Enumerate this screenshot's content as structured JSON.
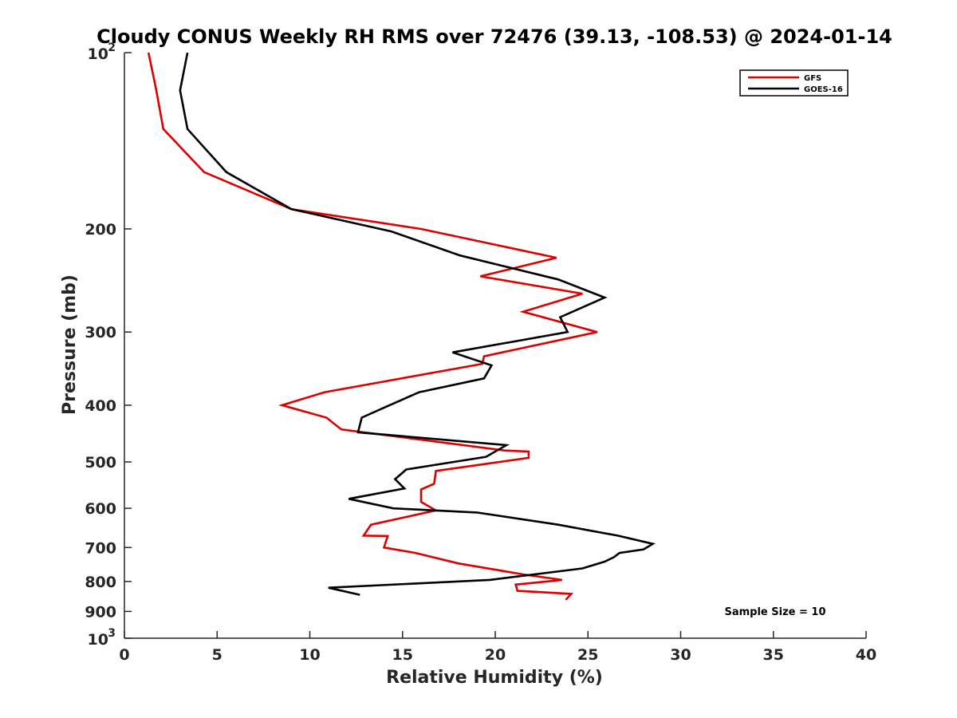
{
  "chart_data": {
    "type": "line",
    "title": "Cloudy CONUS Weekly RH RMS over 72476 (39.13, -108.53) @ 2024-01-14",
    "xlabel": "Relative Humidity (%)",
    "ylabel": "Pressure (mb)",
    "xlim": [
      0,
      40
    ],
    "ylim": [
      100,
      1000
    ],
    "y_scale": "log",
    "y_reversed": true,
    "grid": false,
    "legend_position": "top-right",
    "x_ticks": [
      "0",
      "5",
      "10",
      "15",
      "20",
      "25",
      "30",
      "35",
      "40"
    ],
    "y_ticks": [
      {
        "value": 100,
        "base": "10",
        "exp": "2"
      },
      {
        "value": 200,
        "label": "200"
      },
      {
        "value": 300,
        "label": "300"
      },
      {
        "value": 400,
        "label": "400"
      },
      {
        "value": 500,
        "label": "500"
      },
      {
        "value": 600,
        "label": "600"
      },
      {
        "value": 700,
        "label": "700"
      },
      {
        "value": 800,
        "label": "800"
      },
      {
        "value": 900,
        "label": "900"
      },
      {
        "value": 1000,
        "base": "10",
        "exp": "3"
      }
    ],
    "annotation": "Sample Size = 10",
    "series": [
      {
        "name": "GFS",
        "color": "#dd0000",
        "points": [
          [
            1.3,
            100
          ],
          [
            1.7,
            115
          ],
          [
            2.1,
            135
          ],
          [
            4.3,
            160
          ],
          [
            9.0,
            185
          ],
          [
            16.0,
            200
          ],
          [
            23.3,
            224
          ],
          [
            19.2,
            241
          ],
          [
            24.7,
            258
          ],
          [
            21.5,
            277
          ],
          [
            25.5,
            300
          ],
          [
            19.4,
            330
          ],
          [
            19.3,
            340
          ],
          [
            10.8,
            380
          ],
          [
            8.5,
            400
          ],
          [
            10.9,
            420
          ],
          [
            11.7,
            440
          ],
          [
            20.5,
            478
          ],
          [
            21.8,
            480
          ],
          [
            21.8,
            492
          ],
          [
            16.8,
            518
          ],
          [
            16.7,
            545
          ],
          [
            16.0,
            557
          ],
          [
            16.0,
            585
          ],
          [
            16.8,
            605
          ],
          [
            13.3,
            640
          ],
          [
            12.9,
            668
          ],
          [
            14.2,
            669
          ],
          [
            14.0,
            700
          ],
          [
            15.7,
            715
          ],
          [
            18.0,
            745
          ],
          [
            21.5,
            778
          ],
          [
            23.6,
            795
          ],
          [
            21.1,
            810
          ],
          [
            21.2,
            830
          ],
          [
            24.1,
            840
          ],
          [
            23.8,
            860
          ]
        ]
      },
      {
        "name": "GOES-16",
        "color": "#000000",
        "points": [
          [
            3.4,
            100
          ],
          [
            3.0,
            116
          ],
          [
            3.4,
            135
          ],
          [
            5.5,
            160
          ],
          [
            9.0,
            185
          ],
          [
            14.4,
            202
          ],
          [
            18.1,
            222
          ],
          [
            23.4,
            244
          ],
          [
            25.9,
            262
          ],
          [
            23.5,
            283
          ],
          [
            23.9,
            300
          ],
          [
            17.7,
            325
          ],
          [
            19.8,
            342
          ],
          [
            19.4,
            360
          ],
          [
            15.9,
            380
          ],
          [
            14.3,
            400
          ],
          [
            12.8,
            420
          ],
          [
            12.6,
            445
          ],
          [
            20.6,
            468
          ],
          [
            19.5,
            490
          ],
          [
            15.2,
            515
          ],
          [
            14.6,
            535
          ],
          [
            15.1,
            555
          ],
          [
            12.1,
            578
          ],
          [
            14.5,
            600
          ],
          [
            19.0,
            610
          ],
          [
            23.4,
            640
          ],
          [
            26.6,
            668
          ],
          [
            28.5,
            690
          ],
          [
            28.0,
            705
          ],
          [
            26.7,
            715
          ],
          [
            26.4,
            727
          ],
          [
            25.9,
            740
          ],
          [
            24.7,
            760
          ],
          [
            19.7,
            795
          ],
          [
            11.0,
            820
          ],
          [
            12.7,
            843
          ]
        ]
      }
    ]
  }
}
